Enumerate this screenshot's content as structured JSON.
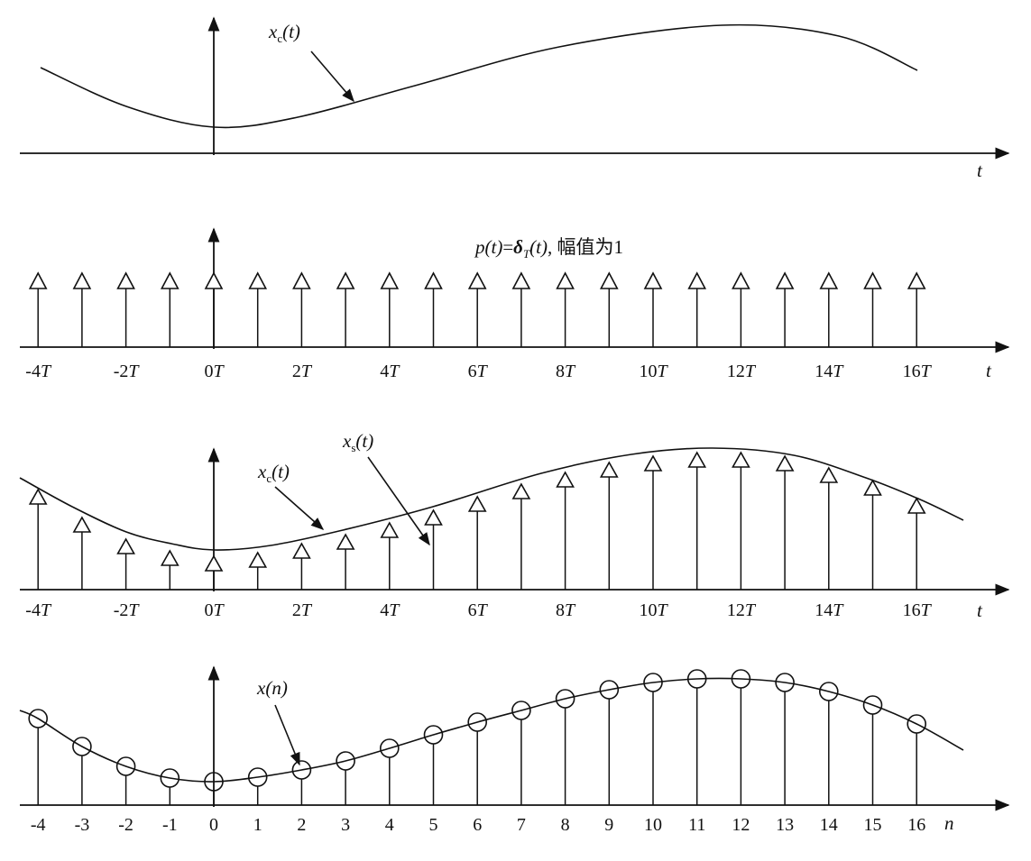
{
  "panels": [
    {
      "id": "xc",
      "curve_label": {
        "main": "x",
        "sub": "c",
        "tail": "(t)"
      },
      "axis_label": "t"
    },
    {
      "id": "pt",
      "title_label": "p(t)=δT(t), 幅值为1",
      "title_parts": {
        "p": "p",
        "t1": "(t)",
        "eq": "=",
        "delta": "δ",
        "sub": "T",
        "t2": "(t)",
        "rest": ", 幅值为1"
      },
      "tick_labels": [
        "-4T",
        "-2T",
        "0T",
        "2T",
        "4T",
        "6T",
        "8T",
        "10T",
        "12T",
        "14T",
        "16T"
      ],
      "tick_numbers": [
        "-4",
        "-2",
        "0",
        "2",
        "4",
        "6",
        "8",
        "10",
        "12",
        "14",
        "16"
      ],
      "axis_label": "t"
    },
    {
      "id": "xs",
      "curve_label": {
        "main": "x",
        "sub": "c",
        "tail": "(t)"
      },
      "sample_label": {
        "main": "x",
        "sub": "s",
        "tail": "(t)"
      },
      "tick_numbers": [
        "-4",
        "-2",
        "0",
        "2",
        "4",
        "6",
        "8",
        "10",
        "12",
        "14",
        "16"
      ],
      "axis_label": "t"
    },
    {
      "id": "xn",
      "curve_label": "x(n)",
      "tick_labels": [
        "-4",
        "-3",
        "-2",
        "-1",
        "0",
        "1",
        "2",
        "3",
        "4",
        "5",
        "6",
        "7",
        "8",
        "9",
        "10",
        "11",
        "12",
        "13",
        "14",
        "15",
        "16"
      ],
      "axis_label": "n"
    }
  ]
}
